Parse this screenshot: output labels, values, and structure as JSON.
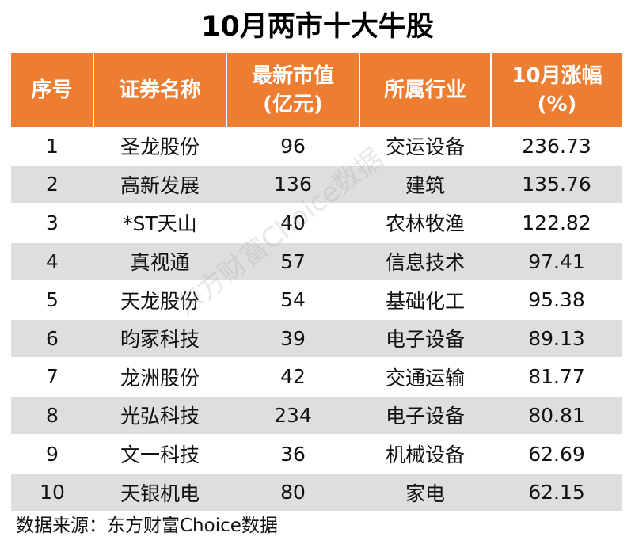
{
  "chart_data": {
    "type": "table",
    "title": "10月两市十大牛股",
    "headers": [
      [
        "序号"
      ],
      [
        "证券名称"
      ],
      [
        "最新市值",
        "(亿元)"
      ],
      [
        "所属行业"
      ],
      [
        "10月涨幅",
        "(%)"
      ]
    ],
    "rows": [
      [
        "1",
        "圣龙股份",
        "96",
        "交运设备",
        "236.73"
      ],
      [
        "2",
        "高新发展",
        "136",
        "建筑",
        "135.76"
      ],
      [
        "3",
        "*ST天山",
        "40",
        "农林牧渔",
        "122.82"
      ],
      [
        "4",
        "真视通",
        "57",
        "信息技术",
        "97.41"
      ],
      [
        "5",
        "天龙股份",
        "54",
        "基础化工",
        "95.38"
      ],
      [
        "6",
        "昀冢科技",
        "39",
        "电子设备",
        "89.13"
      ],
      [
        "7",
        "龙洲股份",
        "42",
        "交通运输",
        "81.77"
      ],
      [
        "8",
        "光弘科技",
        "234",
        "电子设备",
        "80.81"
      ],
      [
        "9",
        "文一科技",
        "36",
        "机械设备",
        "62.69"
      ],
      [
        "10",
        "天银机电",
        "80",
        "家电",
        "62.15"
      ]
    ],
    "source": "数据来源：东方财富Choice数据",
    "watermark": "东方财富Choice数据"
  },
  "colors": {
    "header_background": "#ed7d31",
    "header_text": "#ffffff",
    "stripe": "#dedede"
  }
}
